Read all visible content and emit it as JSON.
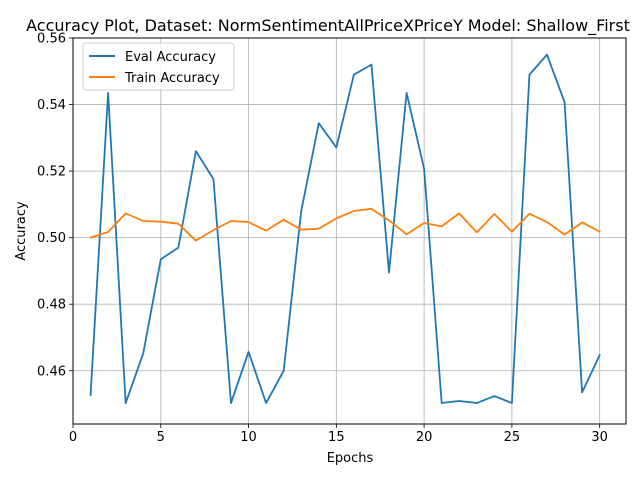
{
  "chart_data": {
    "type": "line",
    "title": "Accuracy Plot, Dataset: NormSentimentAllPriceXPriceY Model: Shallow_First",
    "xlabel": "Epochs",
    "ylabel": "Accuracy",
    "xlim": [
      0,
      31.5
    ],
    "ylim": [
      0.444,
      0.56
    ],
    "xticks": [
      0,
      5,
      10,
      15,
      20,
      25,
      30
    ],
    "yticks": [
      0.46,
      0.48,
      0.5,
      0.52,
      0.54,
      0.56
    ],
    "ytick_labels": [
      "0.46",
      "0.48",
      "0.50",
      "0.52",
      "0.54",
      "0.56"
    ],
    "grid": true,
    "legend_position": "top-left",
    "x": [
      1,
      2,
      3,
      4,
      5,
      6,
      7,
      8,
      9,
      10,
      11,
      12,
      13,
      14,
      15,
      16,
      17,
      18,
      19,
      20,
      21,
      22,
      23,
      24,
      25,
      26,
      27,
      28,
      29,
      30
    ],
    "series": [
      {
        "name": "Eval Accuracy",
        "color": "#1f77b4",
        "values": [
          0.4527,
          0.5435,
          0.4503,
          0.4652,
          0.4935,
          0.497,
          0.526,
          0.5176,
          0.4503,
          0.4657,
          0.4503,
          0.46,
          0.508,
          0.5344,
          0.5271,
          0.549,
          0.552,
          0.4895,
          0.5435,
          0.5207,
          0.4503,
          0.4509,
          0.4503,
          0.4524,
          0.4503,
          0.549,
          0.555,
          0.5407,
          0.4535,
          0.4647
        ]
      },
      {
        "name": "Train Accuracy",
        "color": "#ff7f0e",
        "values": [
          0.5,
          0.5017,
          0.5073,
          0.505,
          0.5048,
          0.5042,
          0.4991,
          0.5023,
          0.505,
          0.5047,
          0.5021,
          0.5054,
          0.5024,
          0.5027,
          0.5058,
          0.508,
          0.5087,
          0.5052,
          0.501,
          0.5044,
          0.5034,
          0.5073,
          0.5016,
          0.5071,
          0.5018,
          0.5072,
          0.5047,
          0.5009,
          0.5046,
          0.5018
        ]
      }
    ]
  }
}
